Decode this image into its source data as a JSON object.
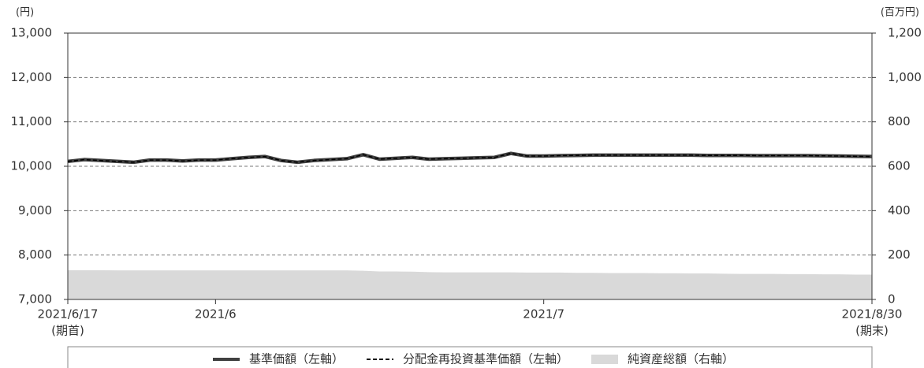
{
  "chart_data": {
    "type": "line",
    "y_unit": "(円)",
    "y2_unit": "(百万円)",
    "categories": [
      "2021/6/17",
      null,
      null,
      null,
      null,
      null,
      null,
      null,
      null,
      "2021/6",
      null,
      null,
      null,
      null,
      null,
      null,
      null,
      null,
      null,
      null,
      null,
      null,
      null,
      null,
      null,
      null,
      null,
      null,
      null,
      "2021/7",
      null,
      null,
      null,
      null,
      null,
      null,
      null,
      null,
      null,
      null,
      null,
      null,
      null,
      null,
      null,
      null,
      null,
      null,
      null,
      "2021/8/30"
    ],
    "x_sublabels": [
      "(期首)",
      null,
      null,
      null,
      null,
      null,
      null,
      null,
      null,
      null,
      null,
      null,
      null,
      null,
      null,
      null,
      null,
      null,
      null,
      null,
      null,
      null,
      null,
      null,
      null,
      null,
      null,
      null,
      null,
      null,
      null,
      null,
      null,
      null,
      null,
      null,
      null,
      null,
      null,
      null,
      null,
      null,
      null,
      null,
      null,
      null,
      null,
      null,
      null,
      "(期末)"
    ],
    "series": [
      {
        "name": "基準価額（左軸）",
        "color": "#404040",
        "style": "solid",
        "values": [
          10110,
          10150,
          10130,
          10110,
          10090,
          10140,
          10140,
          10120,
          10140,
          10140,
          10170,
          10200,
          10220,
          10130,
          10090,
          10130,
          10150,
          10170,
          10260,
          10160,
          10180,
          10200,
          10160,
          10170,
          10180,
          10190,
          10200,
          10290,
          10230,
          10230,
          10240,
          10245,
          10250,
          10250,
          10250,
          10250,
          10250,
          10250,
          10250,
          10245,
          10245,
          10245,
          10240,
          10240,
          10240,
          10240,
          10235,
          10230,
          10225,
          10220
        ]
      },
      {
        "name": "分配金再投資基準価額（左軸）",
        "color": "#000000",
        "style": "dashed",
        "values": [
          10110,
          10150,
          10130,
          10110,
          10090,
          10140,
          10140,
          10120,
          10140,
          10140,
          10170,
          10200,
          10220,
          10130,
          10090,
          10130,
          10150,
          10170,
          10260,
          10160,
          10180,
          10200,
          10160,
          10170,
          10180,
          10190,
          10200,
          10290,
          10230,
          10230,
          10240,
          10245,
          10250,
          10250,
          10250,
          10250,
          10250,
          10250,
          10250,
          10245,
          10245,
          10245,
          10240,
          10240,
          10240,
          10240,
          10235,
          10230,
          10225,
          10220
        ]
      },
      {
        "name": "純資産総額（右軸）",
        "color": "#d9d9d9",
        "style": "area",
        "axis": "y2",
        "values": [
          132,
          132,
          132,
          131,
          131,
          131,
          131,
          131,
          131,
          131,
          131,
          131,
          131,
          131,
          131,
          131,
          131,
          131,
          129,
          126,
          126,
          125,
          123,
          122,
          122,
          122,
          122,
          122,
          121,
          121,
          121,
          120,
          120,
          119,
          119,
          119,
          118,
          118,
          117,
          117,
          116,
          115,
          115,
          115,
          114,
          114,
          113,
          113,
          112,
          112
        ]
      }
    ],
    "ylim": [
      7000,
      13000
    ],
    "yticks": [
      {
        "value": 7000,
        "label": "7,000"
      },
      {
        "value": 8000,
        "label": "8,000"
      },
      {
        "value": 9000,
        "label": "9,000"
      },
      {
        "value": 10000,
        "label": "10,000"
      },
      {
        "value": 11000,
        "label": "11,000"
      },
      {
        "value": 12000,
        "label": "12,000"
      },
      {
        "value": 13000,
        "label": "13,000"
      }
    ],
    "y2lim": [
      0,
      1200
    ],
    "y2ticks": [
      0,
      200,
      400,
      600,
      800,
      {
        "value": 1000,
        "label": "1,000"
      },
      {
        "value": 1200,
        "label": "1,200"
      }
    ],
    "grid": true,
    "legend": "bottom"
  }
}
